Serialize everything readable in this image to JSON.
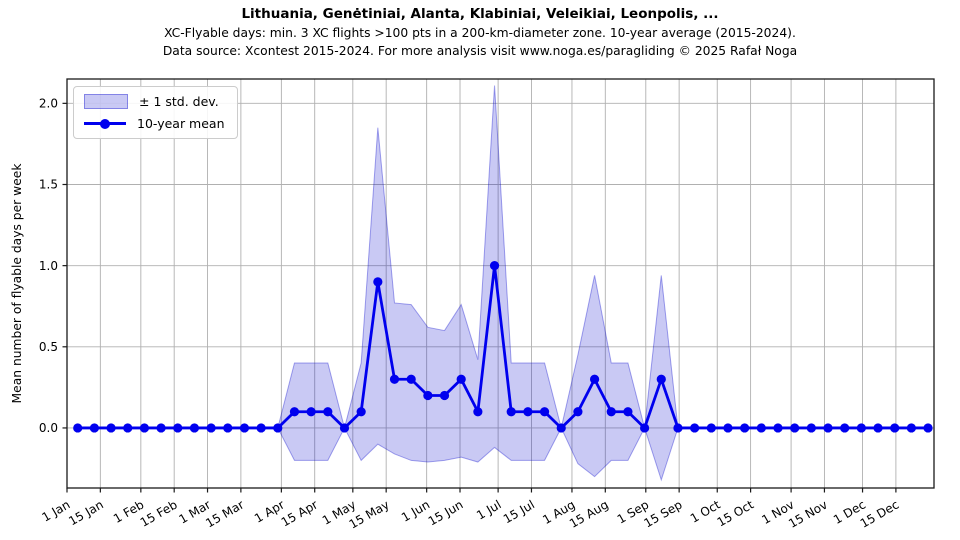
{
  "colors": {
    "line": "#0000ee",
    "band_fill": "rgba(0,0,204,0.21)",
    "band_edge": "rgba(0,0,204,0.35)",
    "grid": "#b0b0b0",
    "spine": "#1a1a1a",
    "text": "#000000",
    "legend_border": "#cccccc"
  },
  "chart_data": {
    "type": "line",
    "title": "Lithuania, Genėtiniai, Alanta, Klabiniai, Veleikiai, Leonpolis, ...",
    "subtitle": "XC-Flyable days: min. 3 XC flights >100 pts in a 200-km-diameter zone. 10-year average (2015-2024).",
    "source_note": "Data source: Xcontest 2015-2024. For more analysis visit www.noga.es/paragliding © 2025 Rafał Noga",
    "xlabel": "",
    "ylabel": "Mean number of flyable days per week",
    "grid": true,
    "legend": {
      "position": "upper left",
      "entries": [
        "± 1 std. dev.",
        "10-year mean"
      ]
    },
    "x_tick_labels": [
      "1 Jan",
      "15 Jan",
      "1 Feb",
      "15 Feb",
      "1 Mar",
      "15 Mar",
      "1 Apr",
      "15 Apr",
      "1 May",
      "15 May",
      "1 Jun",
      "15 Jun",
      "1 Jul",
      "15 Jul",
      "1 Aug",
      "15 Aug",
      "1 Sep",
      "15 Sep",
      "1 Oct",
      "15 Oct",
      "1 Nov",
      "15 Nov",
      "1 Dec",
      "15 Dec"
    ],
    "x_tick_days": [
      0,
      14,
      31,
      45,
      59,
      73,
      90,
      104,
      120,
      134,
      151,
      165,
      181,
      195,
      212,
      226,
      243,
      257,
      273,
      287,
      304,
      318,
      334,
      348
    ],
    "y_tick_labels": [
      "0.0",
      "0.5",
      "1.0",
      "1.5",
      "2.0"
    ],
    "y_tick_values": [
      0.0,
      0.5,
      1.0,
      1.5,
      2.0
    ],
    "xlim_days": [
      0,
      364
    ],
    "ylim": [
      -0.37,
      2.15
    ],
    "week_start_day": 4.5,
    "week_interval_days": 7,
    "series": [
      {
        "name": "10-year mean",
        "values": [
          0,
          0,
          0,
          0,
          0,
          0,
          0,
          0,
          0,
          0,
          0,
          0,
          0,
          0.1,
          0.1,
          0.1,
          0,
          0.1,
          0.9,
          0.3,
          0.3,
          0.2,
          0.2,
          0.3,
          0.1,
          1.0,
          0.1,
          0.1,
          0.1,
          0,
          0.1,
          0.3,
          0.1,
          0.1,
          0,
          0.3,
          0,
          0,
          0,
          0,
          0,
          0,
          0,
          0,
          0,
          0,
          0,
          0,
          0,
          0,
          0,
          0
        ]
      },
      {
        "name": "mean plus 1 std. dev.",
        "values": [
          0,
          0,
          0,
          0,
          0,
          0,
          0,
          0,
          0,
          0,
          0,
          0,
          0,
          0.4,
          0.4,
          0.4,
          0,
          0.4,
          1.85,
          0.77,
          0.76,
          0.62,
          0.6,
          0.76,
          0.42,
          2.11,
          0.4,
          0.4,
          0.4,
          0,
          0.45,
          0.94,
          0.4,
          0.4,
          0,
          0.94,
          0,
          0,
          0,
          0,
          0,
          0,
          0,
          0,
          0,
          0,
          0,
          0,
          0,
          0,
          0,
          0
        ]
      },
      {
        "name": "mean minus 1 std. dev.",
        "values": [
          0,
          0,
          0,
          0,
          0,
          0,
          0,
          0,
          0,
          0,
          0,
          0,
          0,
          -0.2,
          -0.2,
          -0.2,
          0,
          -0.2,
          -0.1,
          -0.16,
          -0.2,
          -0.21,
          -0.2,
          -0.18,
          -0.21,
          -0.12,
          -0.2,
          -0.2,
          -0.2,
          0,
          -0.22,
          -0.3,
          -0.2,
          -0.2,
          0,
          -0.32,
          0,
          0,
          0,
          0,
          0,
          0,
          0,
          0,
          0,
          0,
          0,
          0,
          0,
          0,
          0,
          0
        ]
      }
    ]
  }
}
